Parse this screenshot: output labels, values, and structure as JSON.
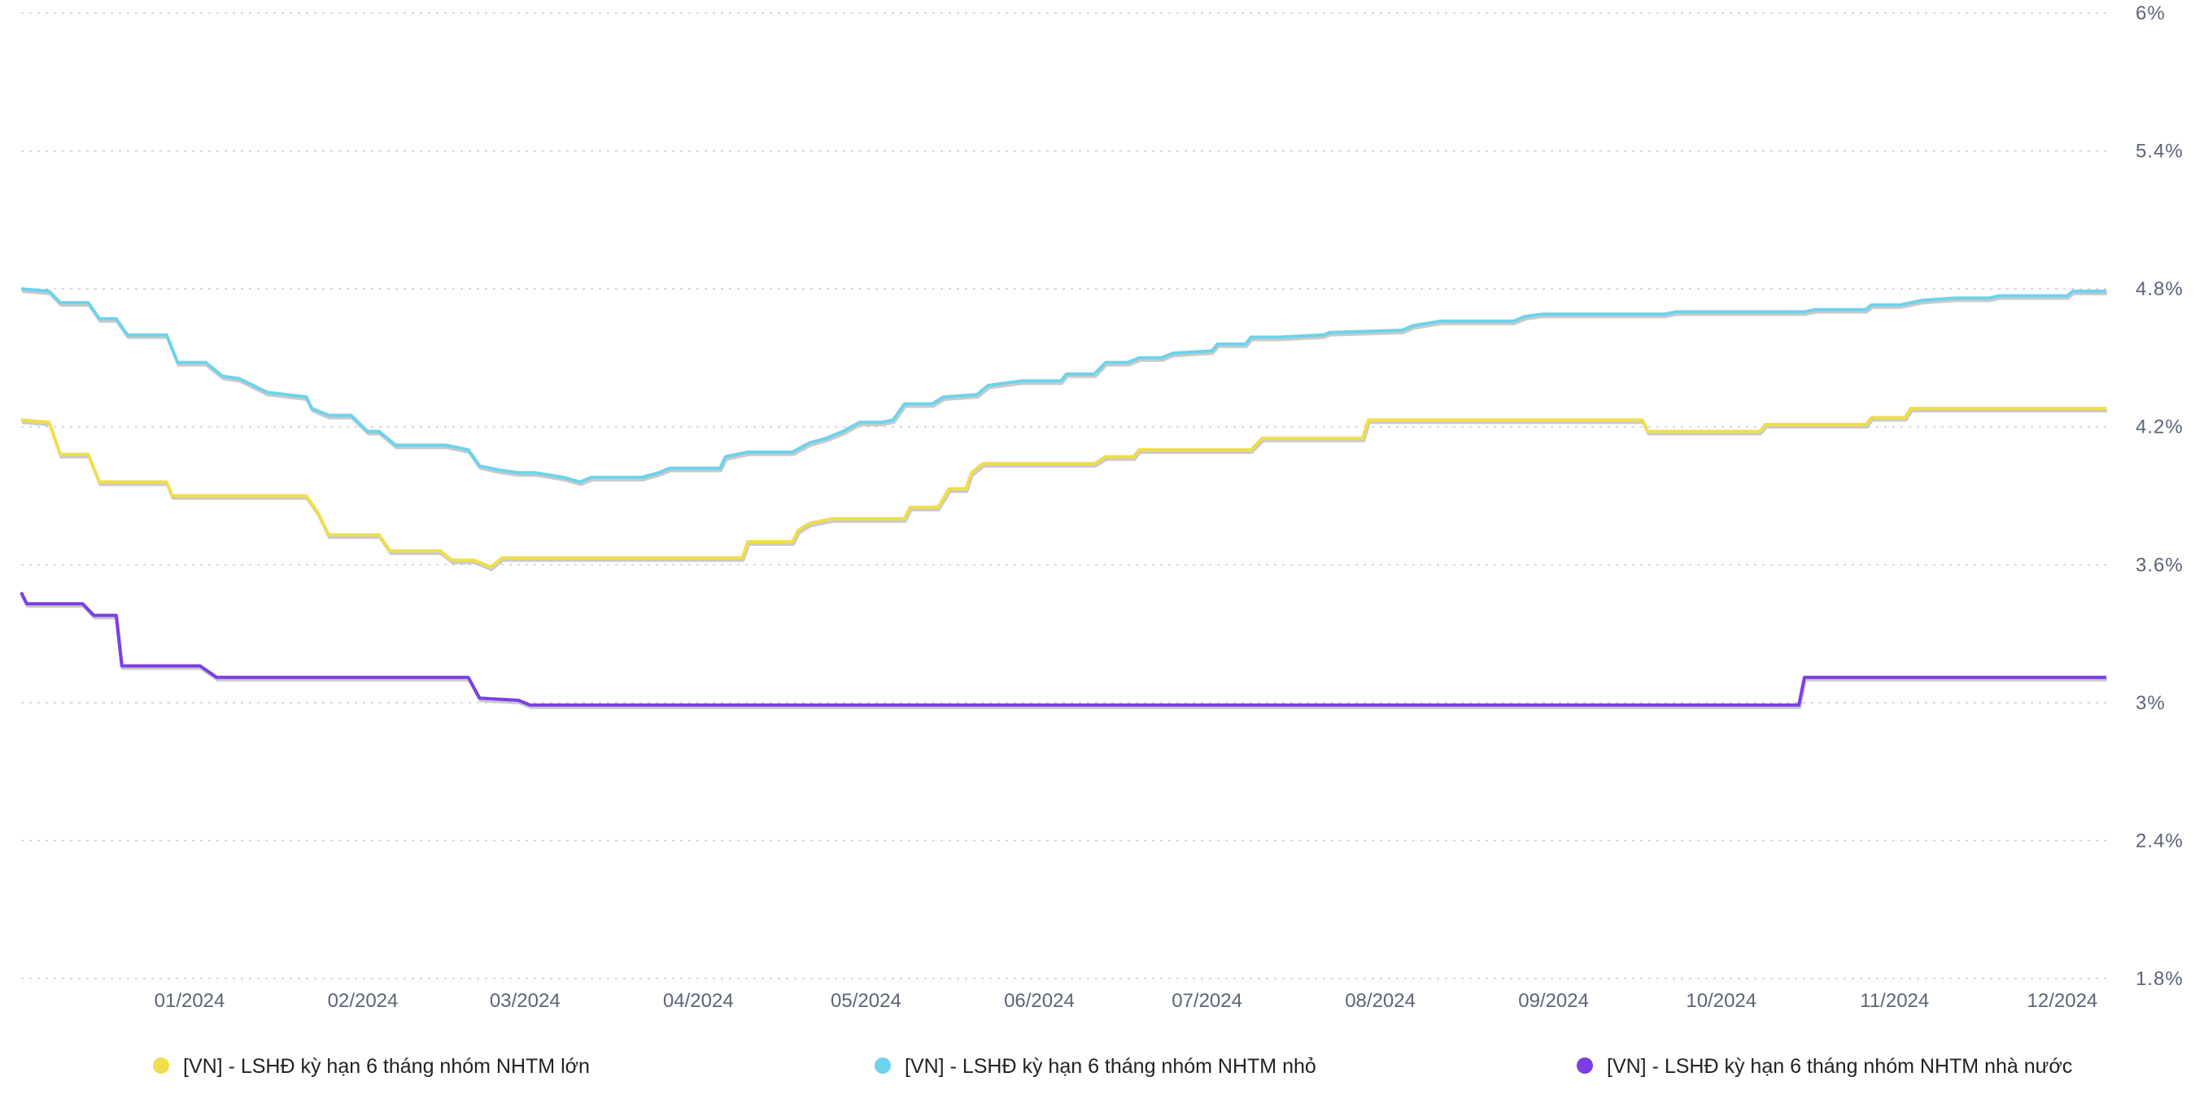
{
  "chart_data": {
    "type": "line",
    "title": "",
    "xlabel": "",
    "ylabel": "",
    "ylim": [
      1.8,
      6.0
    ],
    "y_ticks": [
      "6%",
      "5.4%",
      "4.8%",
      "4.2%",
      "3.6%",
      "3%",
      "2.4%",
      "1.8%"
    ],
    "y_tick_values": [
      6.0,
      5.4,
      4.8,
      4.2,
      3.6,
      3.0,
      2.4,
      1.8
    ],
    "x_range": [
      "2023-12-01",
      "2024-12-08"
    ],
    "x_ticks": [
      "01/2024",
      "02/2024",
      "03/2024",
      "04/2024",
      "05/2024",
      "06/2024",
      "07/2024",
      "08/2024",
      "09/2024",
      "10/2024",
      "11/2024",
      "12/2024"
    ],
    "x_tick_dates": [
      "2024-01-01",
      "2024-02-01",
      "2024-03-01",
      "2024-04-01",
      "2024-05-01",
      "2024-06-01",
      "2024-07-01",
      "2024-08-01",
      "2024-09-01",
      "2024-10-01",
      "2024-11-01",
      "2024-12-01"
    ],
    "grid": "horizontal dotted",
    "y_axis_side": "right",
    "legend_position": "bottom",
    "series": [
      {
        "name": "[VN] - LSHĐ kỳ hạn 6 tháng nhóm NHTM lớn",
        "color": "#f0de4a",
        "points": [
          [
            "2023-12-01",
            4.23
          ],
          [
            "2023-12-06",
            4.22
          ],
          [
            "2023-12-08",
            4.08
          ],
          [
            "2023-12-13",
            4.08
          ],
          [
            "2023-12-15",
            3.96
          ],
          [
            "2023-12-27",
            3.96
          ],
          [
            "2023-12-28",
            3.9
          ],
          [
            "2024-01-21",
            3.9
          ],
          [
            "2024-01-23",
            3.83
          ],
          [
            "2024-01-25",
            3.73
          ],
          [
            "2024-02-03",
            3.73
          ],
          [
            "2024-02-05",
            3.66
          ],
          [
            "2024-02-14",
            3.66
          ],
          [
            "2024-02-16",
            3.62
          ],
          [
            "2024-02-20",
            3.62
          ],
          [
            "2024-02-23",
            3.59
          ],
          [
            "2024-02-25",
            3.63
          ],
          [
            "2024-04-08",
            3.63
          ],
          [
            "2024-04-09",
            3.7
          ],
          [
            "2024-04-17",
            3.7
          ],
          [
            "2024-04-18",
            3.75
          ],
          [
            "2024-04-20",
            3.78
          ],
          [
            "2024-04-24",
            3.8
          ],
          [
            "2024-05-07",
            3.8
          ],
          [
            "2024-05-08",
            3.85
          ],
          [
            "2024-05-13",
            3.85
          ],
          [
            "2024-05-15",
            3.93
          ],
          [
            "2024-05-18",
            3.93
          ],
          [
            "2024-05-19",
            4.0
          ],
          [
            "2024-05-21",
            4.04
          ],
          [
            "2024-06-10",
            4.04
          ],
          [
            "2024-06-12",
            4.07
          ],
          [
            "2024-06-17",
            4.07
          ],
          [
            "2024-06-18",
            4.1
          ],
          [
            "2024-07-08",
            4.1
          ],
          [
            "2024-07-10",
            4.15
          ],
          [
            "2024-07-28",
            4.15
          ],
          [
            "2024-07-29",
            4.23
          ],
          [
            "2024-09-16",
            4.23
          ],
          [
            "2024-09-17",
            4.18
          ],
          [
            "2024-10-07",
            4.18
          ],
          [
            "2024-10-08",
            4.21
          ],
          [
            "2024-10-26",
            4.21
          ],
          [
            "2024-10-27",
            4.24
          ],
          [
            "2024-11-02",
            4.24
          ],
          [
            "2024-11-03",
            4.28
          ],
          [
            "2024-12-08",
            4.28
          ]
        ]
      },
      {
        "name": "[VN] - LSHĐ kỳ hạn 6 tháng nhóm NHTM nhỏ",
        "color": "#6dd3ec",
        "points": [
          [
            "2023-12-01",
            4.8
          ],
          [
            "2023-12-06",
            4.79
          ],
          [
            "2023-12-08",
            4.74
          ],
          [
            "2023-12-13",
            4.74
          ],
          [
            "2023-12-15",
            4.67
          ],
          [
            "2023-12-18",
            4.67
          ],
          [
            "2023-12-20",
            4.6
          ],
          [
            "2023-12-27",
            4.6
          ],
          [
            "2023-12-29",
            4.48
          ],
          [
            "2024-01-03",
            4.48
          ],
          [
            "2024-01-06",
            4.42
          ],
          [
            "2024-01-09",
            4.41
          ],
          [
            "2024-01-14",
            4.35
          ],
          [
            "2024-01-21",
            4.33
          ],
          [
            "2024-01-22",
            4.28
          ],
          [
            "2024-01-25",
            4.25
          ],
          [
            "2024-01-29",
            4.25
          ],
          [
            "2024-02-01",
            4.18
          ],
          [
            "2024-02-03",
            4.18
          ],
          [
            "2024-02-06",
            4.12
          ],
          [
            "2024-02-15",
            4.12
          ],
          [
            "2024-02-19",
            4.1
          ],
          [
            "2024-02-21",
            4.03
          ],
          [
            "2024-02-25",
            4.01
          ],
          [
            "2024-02-28",
            4.0
          ],
          [
            "2024-03-02",
            4.0
          ],
          [
            "2024-03-07",
            3.98
          ],
          [
            "2024-03-10",
            3.96
          ],
          [
            "2024-03-12",
            3.98
          ],
          [
            "2024-03-21",
            3.98
          ],
          [
            "2024-03-24",
            4.0
          ],
          [
            "2024-03-26",
            4.02
          ],
          [
            "2024-04-04",
            4.02
          ],
          [
            "2024-04-05",
            4.07
          ],
          [
            "2024-04-09",
            4.09
          ],
          [
            "2024-04-17",
            4.09
          ],
          [
            "2024-04-20",
            4.13
          ],
          [
            "2024-04-23",
            4.15
          ],
          [
            "2024-04-26",
            4.18
          ],
          [
            "2024-04-29",
            4.22
          ],
          [
            "2024-05-03",
            4.22
          ],
          [
            "2024-05-05",
            4.23
          ],
          [
            "2024-05-07",
            4.3
          ],
          [
            "2024-05-12",
            4.3
          ],
          [
            "2024-05-14",
            4.33
          ],
          [
            "2024-05-20",
            4.34
          ],
          [
            "2024-05-22",
            4.38
          ],
          [
            "2024-05-28",
            4.4
          ],
          [
            "2024-06-04",
            4.4
          ],
          [
            "2024-06-05",
            4.43
          ],
          [
            "2024-06-10",
            4.43
          ],
          [
            "2024-06-12",
            4.48
          ],
          [
            "2024-06-16",
            4.48
          ],
          [
            "2024-06-18",
            4.5
          ],
          [
            "2024-06-22",
            4.5
          ],
          [
            "2024-06-24",
            4.52
          ],
          [
            "2024-07-01",
            4.53
          ],
          [
            "2024-07-02",
            4.56
          ],
          [
            "2024-07-07",
            4.56
          ],
          [
            "2024-07-08",
            4.59
          ],
          [
            "2024-07-13",
            4.59
          ],
          [
            "2024-07-21",
            4.6
          ],
          [
            "2024-07-22",
            4.61
          ],
          [
            "2024-08-04",
            4.62
          ],
          [
            "2024-08-06",
            4.64
          ],
          [
            "2024-08-11",
            4.66
          ],
          [
            "2024-08-24",
            4.66
          ],
          [
            "2024-08-26",
            4.68
          ],
          [
            "2024-08-29",
            4.69
          ],
          [
            "2024-09-20",
            4.69
          ],
          [
            "2024-09-22",
            4.7
          ],
          [
            "2024-10-15",
            4.7
          ],
          [
            "2024-10-17",
            4.71
          ],
          [
            "2024-10-26",
            4.71
          ],
          [
            "2024-10-27",
            4.73
          ],
          [
            "2024-11-01",
            4.73
          ],
          [
            "2024-11-05",
            4.75
          ],
          [
            "2024-11-11",
            4.76
          ],
          [
            "2024-11-17",
            4.76
          ],
          [
            "2024-11-19",
            4.77
          ],
          [
            "2024-12-01",
            4.77
          ],
          [
            "2024-12-02",
            4.79
          ],
          [
            "2024-12-08",
            4.79
          ]
        ]
      },
      {
        "name": "[VN] - LSHĐ kỳ hạn 6 tháng nhóm NHTM nhà nước",
        "color": "#7b3fe4",
        "points": [
          [
            "2023-12-01",
            3.48
          ],
          [
            "2023-12-02",
            3.43
          ],
          [
            "2023-12-12",
            3.43
          ],
          [
            "2023-12-14",
            3.38
          ],
          [
            "2023-12-18",
            3.38
          ],
          [
            "2023-12-19",
            3.16
          ],
          [
            "2024-01-02",
            3.16
          ],
          [
            "2024-01-05",
            3.11
          ],
          [
            "2024-02-19",
            3.11
          ],
          [
            "2024-02-21",
            3.02
          ],
          [
            "2024-02-28",
            3.01
          ],
          [
            "2024-03-01",
            2.99
          ],
          [
            "2024-10-14",
            2.99
          ],
          [
            "2024-10-15",
            3.11
          ],
          [
            "2024-12-08",
            3.11
          ]
        ]
      }
    ]
  }
}
